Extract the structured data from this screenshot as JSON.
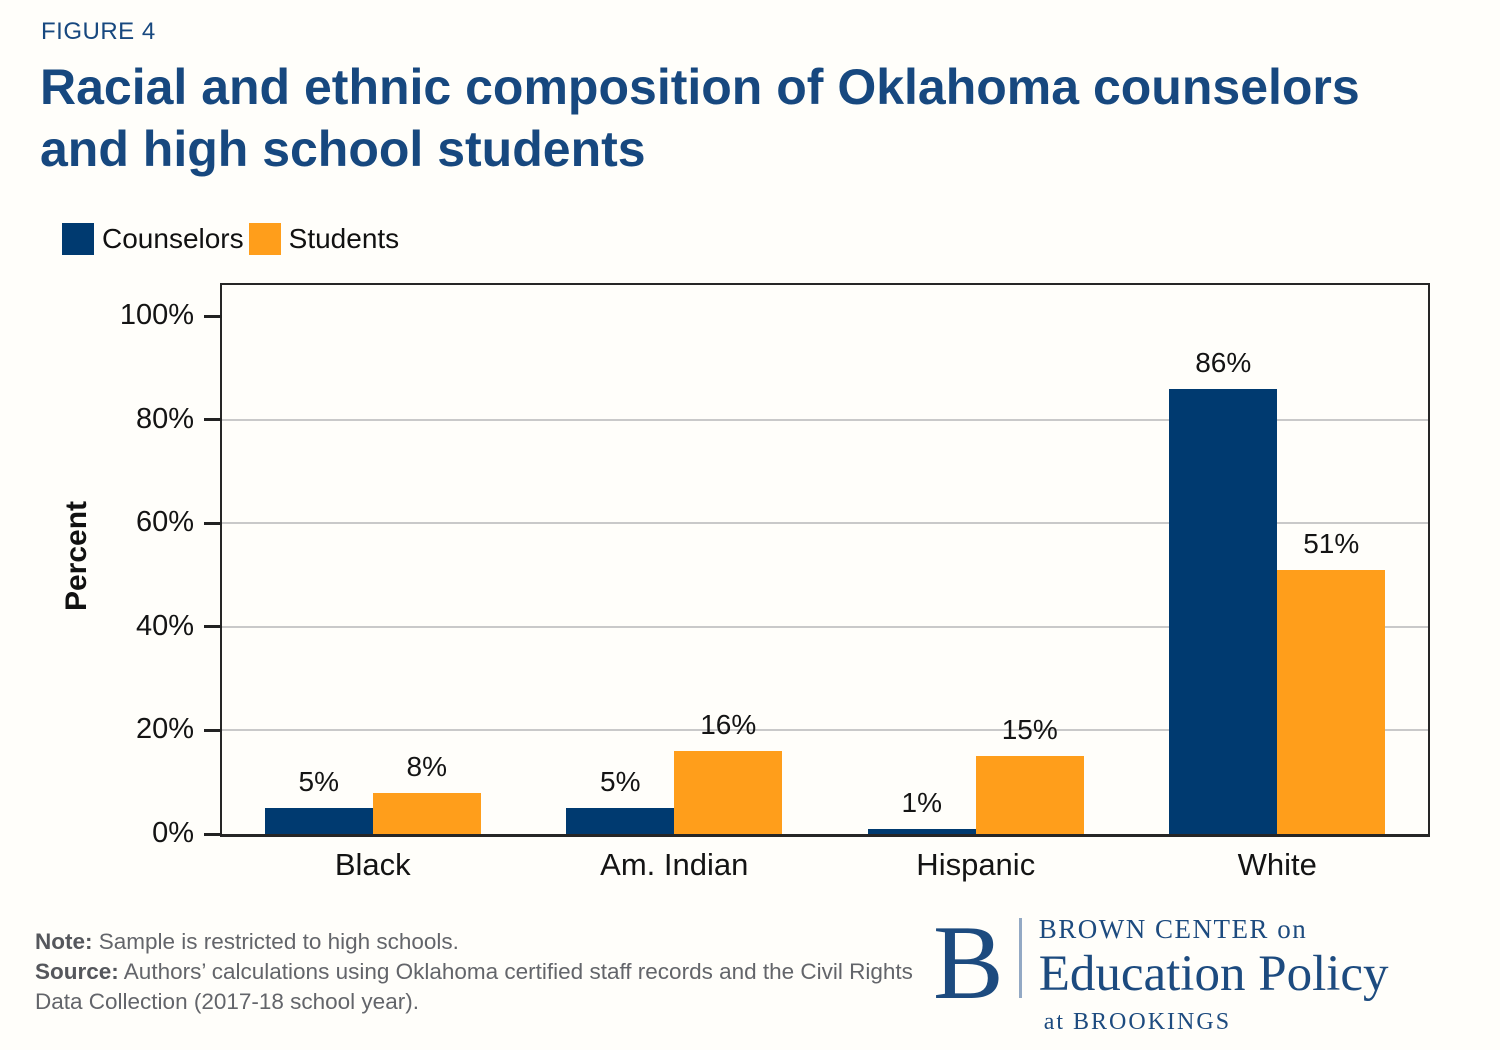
{
  "header": {
    "figure_label": "FIGURE 4",
    "title_line1": "Racial and ethnic composition of Oklahoma counselors",
    "title_line2": "and high school students"
  },
  "legend": {
    "items": [
      {
        "label": "Counselors",
        "color": "#003a70"
      },
      {
        "label": "Students",
        "color": "#ff9e1b"
      }
    ]
  },
  "chart_data": {
    "type": "bar",
    "title": "Racial and ethnic composition of Oklahoma counselors and high school students",
    "categories": [
      "Black",
      "Am. Indian",
      "Hispanic",
      "White"
    ],
    "series": [
      {
        "name": "Counselors",
        "color": "#003a70",
        "values": [
          5,
          5,
          1,
          86
        ]
      },
      {
        "name": "Students",
        "color": "#ff9e1b",
        "values": [
          8,
          16,
          15,
          51
        ]
      }
    ],
    "xlabel": "",
    "ylabel": "Percent",
    "ylim": [
      0,
      106
    ],
    "yticks": [
      0,
      20,
      40,
      60,
      80,
      100
    ],
    "ytick_labels": [
      "0%",
      "20%",
      "40%",
      "60%",
      "80%",
      "100%"
    ],
    "grid": true,
    "gridline_ticks": [
      20,
      40,
      60,
      80
    ],
    "legend_position": "top-left",
    "value_label_suffix": "%"
  },
  "notes": {
    "note_label": "Note:",
    "note_text": "Sample is restricted to high schools.",
    "source_label": "Source:",
    "source_text": "Authors’ calculations using Oklahoma certified staff records and the Civil Rights Data Collection (2017-18 school year)."
  },
  "logo": {
    "monogram": "B",
    "line1_caps": "BROWN CENTER",
    "line1_small": "on",
    "line2": "Education Policy",
    "line3_small": "at",
    "line3_caps": "BROOKINGS"
  },
  "colors": {
    "title_navy": "#17487f",
    "bar_navy": "#003a70",
    "bar_orange": "#ff9e1b",
    "logo_navy": "#1d4b7f",
    "gridline_gray": "#c9c9c9",
    "axis_dark": "#262626",
    "text_dark": "#141414",
    "note_gray": "#63656a"
  }
}
